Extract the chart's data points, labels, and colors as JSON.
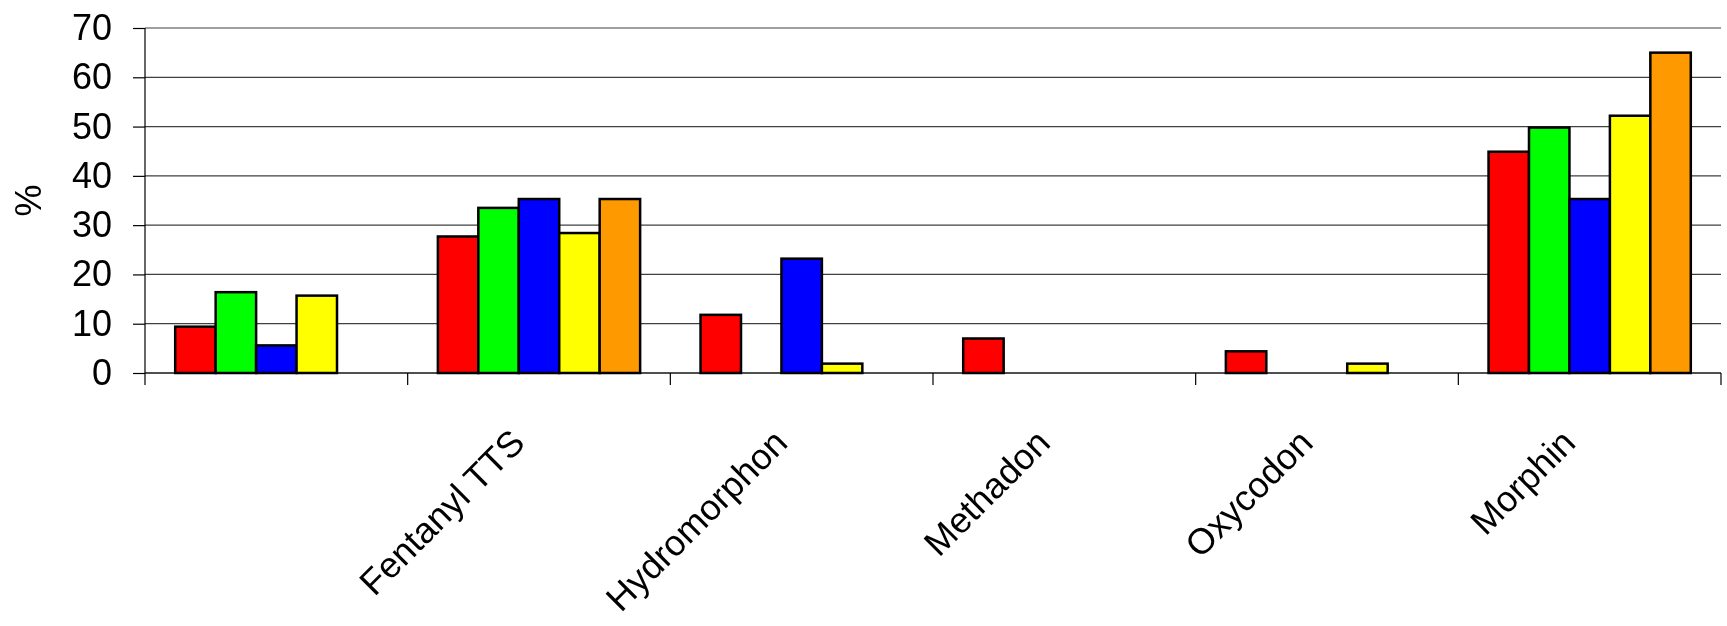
{
  "chart_data": {
    "type": "bar",
    "ylabel": "%",
    "categories": [
      null,
      "Fentanyl TTS",
      "Hydromorphon",
      "Methadon",
      "Oxycodon",
      "Morphin"
    ],
    "series": [
      {
        "color": "#ff0000",
        "values": [
          9.4,
          27.7,
          11.8,
          7.0,
          4.4,
          44.9
        ]
      },
      {
        "color": "#00ff00",
        "values": [
          16.4,
          33.5,
          null,
          null,
          null,
          49.8
        ]
      },
      {
        "color": "#0000ff",
        "values": [
          5.6,
          35.3,
          23.2,
          null,
          null,
          35.3
        ]
      },
      {
        "color": "#ffff00",
        "values": [
          15.7,
          28.4,
          1.9,
          null,
          1.9,
          52.2
        ]
      },
      {
        "color": "#ff9900",
        "values": [
          null,
          35.3,
          null,
          null,
          null,
          65.0
        ]
      }
    ],
    "ylim": [
      0,
      70
    ],
    "yticks": [
      0,
      10,
      20,
      30,
      40,
      50,
      60,
      70
    ],
    "grid": "y"
  }
}
